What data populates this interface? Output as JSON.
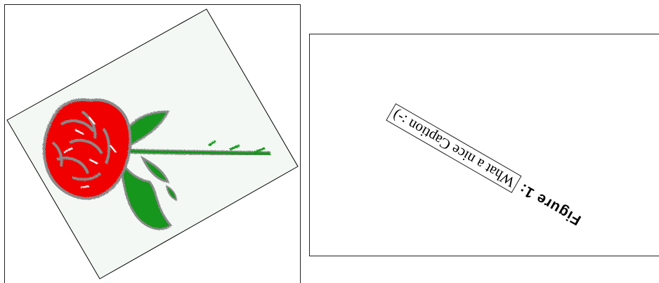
{
  "figure": {
    "image": "rose-illustration",
    "paper_color": "#f3f8f4",
    "petal_color": "#f00000",
    "leaf_color": "#12961a",
    "outline_color": "#8a8a8a"
  },
  "caption": {
    "label": "Figure 1:",
    "text": "What a nice Caption :-)"
  }
}
